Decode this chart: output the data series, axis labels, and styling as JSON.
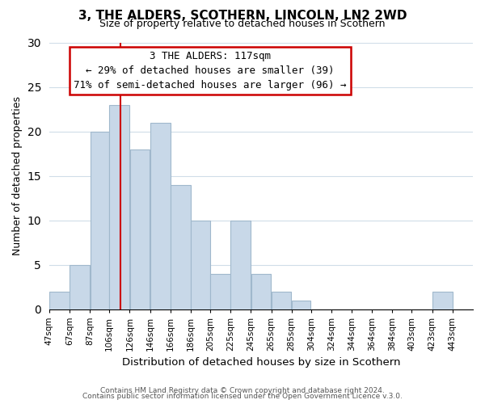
{
  "title": "3, THE ALDERS, SCOTHERN, LINCOLN, LN2 2WD",
  "subtitle": "Size of property relative to detached houses in Scothern",
  "xlabel": "Distribution of detached houses by size in Scothern",
  "ylabel": "Number of detached properties",
  "bar_color": "#c8d8e8",
  "bar_edge_color": "#a0b8cc",
  "bin_labels": [
    "47sqm",
    "67sqm",
    "87sqm",
    "106sqm",
    "126sqm",
    "146sqm",
    "166sqm",
    "186sqm",
    "205sqm",
    "225sqm",
    "245sqm",
    "265sqm",
    "285sqm",
    "304sqm",
    "324sqm",
    "344sqm",
    "364sqm",
    "384sqm",
    "403sqm",
    "423sqm",
    "443sqm"
  ],
  "bin_edges": [
    47,
    67,
    87,
    106,
    126,
    146,
    166,
    186,
    205,
    225,
    245,
    265,
    285,
    304,
    324,
    344,
    364,
    384,
    403,
    423,
    443,
    463
  ],
  "bar_heights": [
    2,
    5,
    20,
    23,
    18,
    21,
    14,
    10,
    4,
    10,
    4,
    2,
    1,
    0,
    0,
    0,
    0,
    0,
    0,
    2,
    0
  ],
  "red_line_x": 117,
  "ylim": [
    0,
    30
  ],
  "yticks": [
    0,
    5,
    10,
    15,
    20,
    25,
    30
  ],
  "annotation_title": "3 THE ALDERS: 117sqm",
  "annotation_line1": "← 29% of detached houses are smaller (39)",
  "annotation_line2": "71% of semi-detached houses are larger (96) →",
  "annotation_box_color": "#ffffff",
  "annotation_box_edge": "#cc0000",
  "footer_line1": "Contains HM Land Registry data © Crown copyright and database right 2024.",
  "footer_line2": "Contains public sector information licensed under the Open Government Licence v.3.0.",
  "background_color": "#ffffff",
  "grid_color": "#d0dde8"
}
